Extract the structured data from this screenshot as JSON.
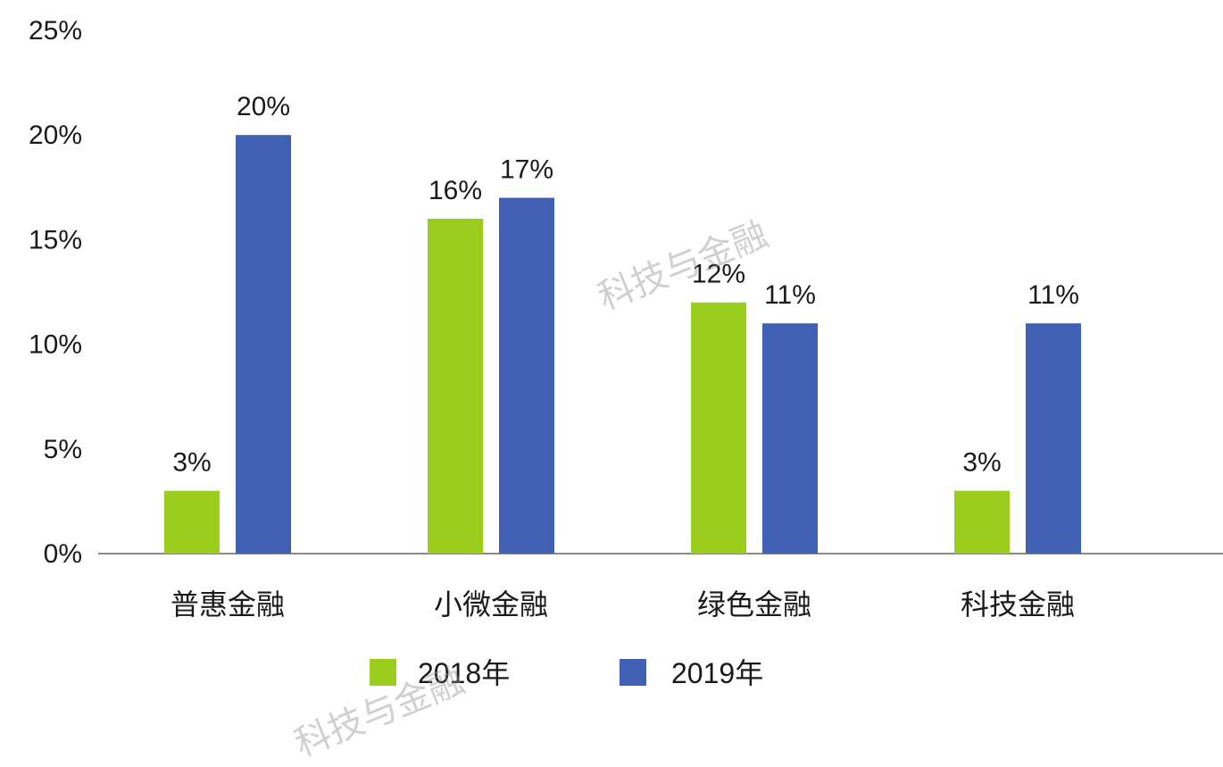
{
  "chart_data": {
    "type": "bar",
    "categories": [
      "普惠金融",
      "小微金融",
      "绿色金融",
      "科技金融"
    ],
    "series": [
      {
        "name": "2018年",
        "values": [
          3,
          16,
          12,
          3
        ],
        "labels": [
          "3%",
          "16%",
          "12%",
          "3%"
        ],
        "color": "#9acd1e"
      },
      {
        "name": "2019年",
        "values": [
          20,
          17,
          11,
          11
        ],
        "labels": [
          "20%",
          "17%",
          "11%",
          "11%"
        ],
        "color": "#4060b4"
      }
    ],
    "ylim": [
      0,
      25
    ],
    "yticks": [
      0,
      5,
      10,
      15,
      20,
      25
    ],
    "ytick_labels": [
      "0%",
      "5%",
      "10%",
      "15%",
      "20%",
      "25%"
    ],
    "legend_position": "bottom",
    "grid": false,
    "title": "",
    "xlabel": "",
    "ylabel": ""
  },
  "watermark": "科技与金融"
}
